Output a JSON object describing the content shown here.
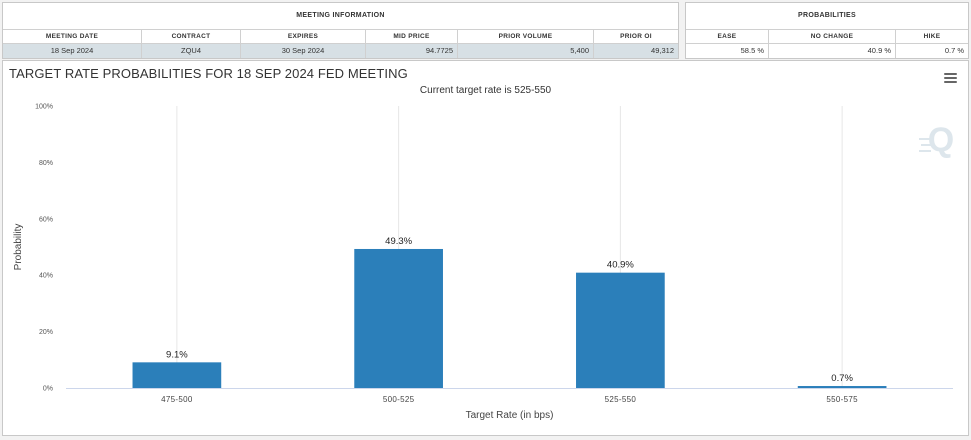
{
  "meeting_info": {
    "title": "MEETING INFORMATION",
    "headers": [
      "MEETING DATE",
      "CONTRACT",
      "EXPIRES",
      "MID PRICE",
      "PRIOR VOLUME",
      "PRIOR OI"
    ],
    "row": [
      "18 Sep 2024",
      "ZQU4",
      "30 Sep 2024",
      "94.7725",
      "5,400",
      "49,312"
    ]
  },
  "probabilities": {
    "title": "PROBABILITIES",
    "headers": [
      "EASE",
      "NO CHANGE",
      "HIKE"
    ],
    "row": [
      "58.5 %",
      "40.9 %",
      "0.7 %"
    ]
  },
  "chart_data": {
    "type": "bar",
    "title": "TARGET RATE PROBABILITIES FOR 18 SEP 2024 FED MEETING",
    "subtitle": "Current target rate is 525-550",
    "xlabel": "Target Rate (in bps)",
    "ylabel": "Probability",
    "categories": [
      "475-500",
      "500-525",
      "525-550",
      "550-575"
    ],
    "values": [
      9.1,
      49.3,
      40.9,
      0.7
    ],
    "data_labels": [
      "9.1%",
      "49.3%",
      "40.9%",
      "0.7%"
    ],
    "ylim": [
      0,
      100
    ],
    "yticks": [
      0,
      20,
      40,
      60,
      80,
      100
    ],
    "ytick_labels": [
      "0%",
      "20%",
      "40%",
      "60%",
      "80%",
      "100%"
    ],
    "grid": "vertical",
    "bar_color": "#2b7fba",
    "legend": "none"
  }
}
